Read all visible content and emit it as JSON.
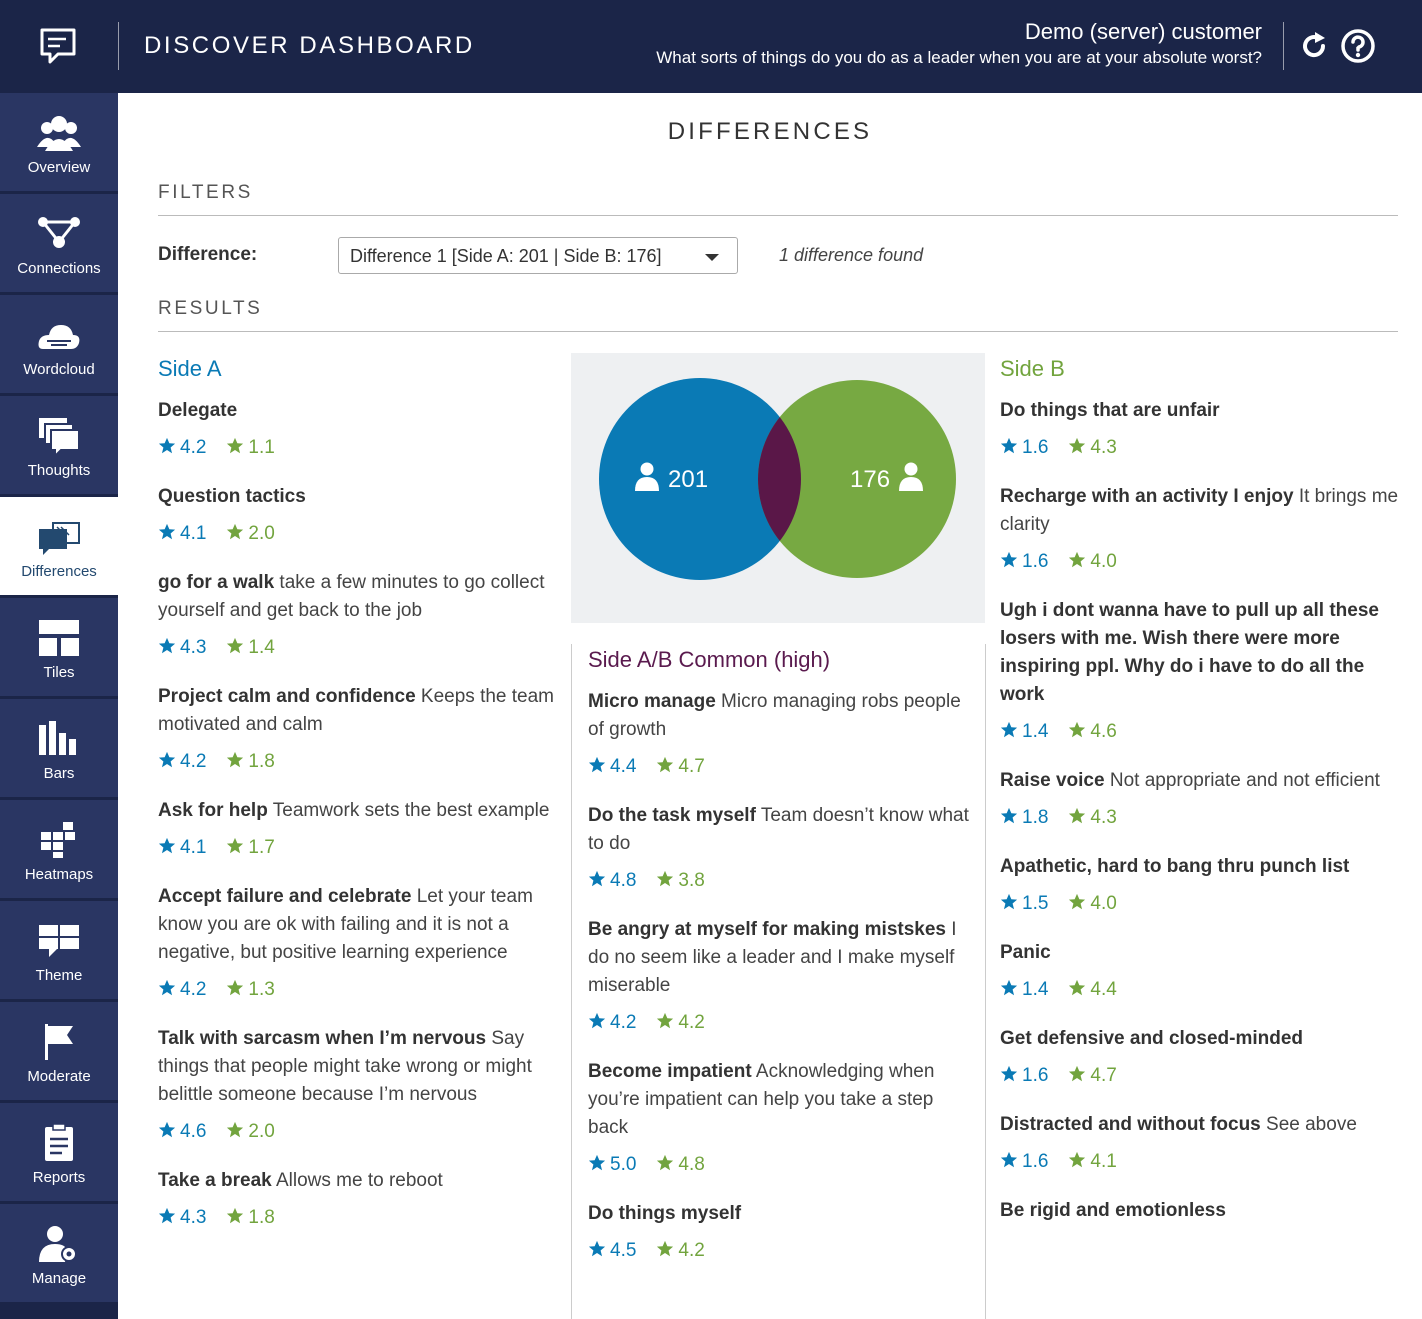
{
  "header": {
    "title": "DISCOVER DASHBOARD",
    "customer_name": "Demo (server) customer",
    "question": "What sorts of things do you do as a leader when you are at your absolute worst?",
    "refresh_icon": "refresh-icon",
    "help_icon": "help-icon",
    "logo_icon": "chat-logo-icon"
  },
  "sidebar": {
    "items": [
      {
        "label": "Overview",
        "icon": "people-icon"
      },
      {
        "label": "Connections",
        "icon": "connections-icon"
      },
      {
        "label": "Wordcloud",
        "icon": "wordcloud-icon"
      },
      {
        "label": "Thoughts",
        "icon": "thoughts-icon"
      },
      {
        "label": "Differences",
        "icon": "differences-icon",
        "active": true
      },
      {
        "label": "Tiles",
        "icon": "tiles-icon"
      },
      {
        "label": "Bars",
        "icon": "bars-icon"
      },
      {
        "label": "Heatmaps",
        "icon": "heatmaps-icon"
      },
      {
        "label": "Theme",
        "icon": "theme-icon"
      },
      {
        "label": "Moderate",
        "icon": "flag-icon"
      },
      {
        "label": "Reports",
        "icon": "reports-icon"
      },
      {
        "label": "Manage",
        "icon": "manage-icon"
      }
    ]
  },
  "main": {
    "title": "DIFFERENCES",
    "filters_heading": "FILTERS",
    "difference_label": "Difference:",
    "difference_value": "Difference 1 [Side A: 201 | Side B: 176]",
    "found_text": "1 difference found",
    "results_heading": "RESULTS"
  },
  "venn": {
    "side_a_count": "201",
    "side_b_count": "176",
    "colors": {
      "a": "#0a7ab5",
      "b": "#77a942",
      "overlap": "#5a1748"
    }
  },
  "side_a": {
    "heading": "Side A",
    "items": [
      {
        "title": "Delegate",
        "desc": "",
        "a": "4.2",
        "b": "1.1"
      },
      {
        "title": "Question tactics",
        "desc": "",
        "a": "4.1",
        "b": "2.0"
      },
      {
        "title": "go for a walk",
        "desc": "take a few minutes to go collect yourself and get back to the job",
        "a": "4.3",
        "b": "1.4"
      },
      {
        "title": "Project calm and confidence",
        "desc": "Keeps the team motivated and calm",
        "a": "4.2",
        "b": "1.8"
      },
      {
        "title": "Ask for help",
        "desc": "Teamwork sets the best example",
        "a": "4.1",
        "b": "1.7"
      },
      {
        "title": "Accept failure and celebrate",
        "desc": "Let your team know you are ok with failing and it is not a negative, but positive learning experience",
        "a": "4.2",
        "b": "1.3"
      },
      {
        "title": "Talk with sarcasm when I’m nervous",
        "desc": " Say things that people might take wrong or might belittle someone because I’m nervous",
        "a": "4.6",
        "b": "2.0"
      },
      {
        "title": "Take a break",
        "desc": " Allows me to reboot",
        "a": "4.3",
        "b": "1.8"
      }
    ]
  },
  "common": {
    "heading": "Side A/B Common (high)",
    "items": [
      {
        "title": "Micro manage",
        "desc": "Micro managing robs people of growth",
        "a": "4.4",
        "b": "4.7"
      },
      {
        "title": "Do the task myself",
        "desc": "Team doesn’t know what to do",
        "a": "4.8",
        "b": "3.8"
      },
      {
        "title": "Be angry at myself for making mistskes",
        "desc": "I do no seem like a leader and I make myself miserable",
        "a": "4.2",
        "b": "4.2"
      },
      {
        "title": "Become impatient",
        "desc": "Acknowledging when you’re impatient can help you take a step back",
        "a": "5.0",
        "b": "4.8"
      },
      {
        "title": "Do things myself",
        "desc": "",
        "a": "4.5",
        "b": "4.2"
      }
    ]
  },
  "side_b": {
    "heading": "Side B",
    "items": [
      {
        "title": "Do things that are unfair",
        "desc": "",
        "a": "1.6",
        "b": "4.3"
      },
      {
        "title": "Recharge with an activity I enjoy",
        "desc": "It brings me clarity",
        "a": "1.6",
        "b": "4.0"
      },
      {
        "title": "Ugh i dont wanna have to pull up all these losers with me. Wish there were more inspiring ppl. Why do i have to do all the work",
        "desc": "",
        "a": "1.4",
        "b": "4.6"
      },
      {
        "title": "Raise voice",
        "desc": "Not appropriate and not efficient",
        "a": "1.8",
        "b": "4.3"
      },
      {
        "title": "Apathetic, hard to bang thru punch list",
        "desc": "",
        "a": "1.5",
        "b": "4.0"
      },
      {
        "title": "Panic",
        "desc": "",
        "a": "1.4",
        "b": "4.4"
      },
      {
        "title": "Get defensive and closed-minded",
        "desc": "",
        "a": "1.6",
        "b": "4.7"
      },
      {
        "title": "Distracted and without focus",
        "desc": "See above",
        "a": "1.6",
        "b": "4.1"
      },
      {
        "title": "Be rigid and emotionless",
        "desc": "",
        "a": "",
        "b": ""
      }
    ]
  }
}
